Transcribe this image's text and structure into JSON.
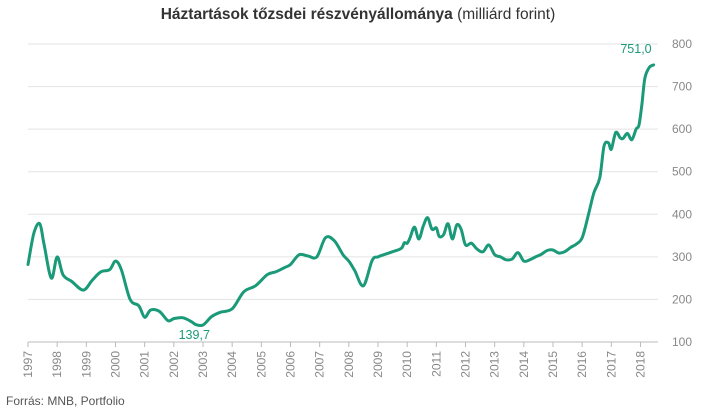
{
  "title_bold": "Háztartások tőzsdei részvényállománya",
  "title_rest": " (milliárd forint)",
  "source": "Forrás:  MNB, Portfolio",
  "line_color": "#1a9a78",
  "chart_data": {
    "type": "line",
    "title": "Háztartások tőzsdei részvényállománya (milliárd forint)",
    "ylim": [
      100,
      800
    ],
    "yticks": [
      100,
      200,
      300,
      400,
      500,
      600,
      700,
      800
    ],
    "xlim": [
      1997,
      2018.6
    ],
    "xticks": [
      "1997",
      "1998",
      "1999",
      "2000",
      "2001",
      "2002",
      "2003",
      "2004",
      "2005",
      "2006",
      "2007",
      "2008",
      "2009",
      "2010",
      "2011",
      "2012",
      "2013",
      "2014",
      "2015",
      "2016",
      "2017",
      "2018"
    ],
    "grid": true,
    "annotations": [
      {
        "label": "751,0",
        "x": 2018.45,
        "y": 751.0
      },
      {
        "label": "139,7",
        "x": 2002.7,
        "y": 139.7
      }
    ],
    "series": [
      {
        "x": [
          1997.0,
          1997.2,
          1997.4,
          1997.55,
          1997.8,
          1998.0,
          1998.2,
          1998.5,
          1998.9,
          1999.2,
          1999.5,
          1999.8,
          2000.0,
          2000.2,
          2000.5,
          2000.8,
          2001.0,
          2001.2,
          2001.5,
          2001.8,
          2002.0,
          2002.3,
          2002.6,
          2002.75,
          2003.0,
          2003.3,
          2003.6,
          2004.0,
          2004.4,
          2004.8,
          2005.2,
          2005.5,
          2005.8,
          2006.0,
          2006.3,
          2006.6,
          2006.9,
          2007.2,
          2007.5,
          2007.8,
          2008.0,
          2008.2,
          2008.5,
          2008.8,
          2009.0,
          2009.2,
          2009.5,
          2009.8,
          2009.9,
          2010.0,
          2010.1,
          2010.25,
          2010.4,
          2010.55,
          2010.7,
          2010.85,
          2011.0,
          2011.1,
          2011.25,
          2011.4,
          2011.55,
          2011.7,
          2011.85,
          2012.0,
          2012.2,
          2012.4,
          2012.6,
          2012.8,
          2013.0,
          2013.2,
          2013.4,
          2013.6,
          2013.8,
          2014.0,
          2014.2,
          2014.4,
          2014.6,
          2014.8,
          2015.0,
          2015.2,
          2015.4,
          2015.6,
          2015.8,
          2016.0,
          2016.2,
          2016.4,
          2016.6,
          2016.75,
          2016.9,
          2017.0,
          2017.15,
          2017.3,
          2017.4,
          2017.55,
          2017.7,
          2017.85,
          2017.95,
          2018.05,
          2018.15,
          2018.3,
          2018.45
        ],
        "values": [
          282,
          355,
          378,
          330,
          250,
          300,
          258,
          242,
          222,
          245,
          265,
          270,
          290,
          270,
          200,
          185,
          158,
          175,
          172,
          150,
          155,
          157,
          148,
          141,
          140,
          160,
          170,
          178,
          218,
          232,
          258,
          265,
          275,
          282,
          305,
          302,
          300,
          345,
          338,
          305,
          290,
          268,
          232,
          292,
          300,
          305,
          312,
          320,
          333,
          332,
          345,
          370,
          342,
          372,
          392,
          365,
          368,
          348,
          352,
          378,
          342,
          375,
          365,
          328,
          332,
          318,
          312,
          328,
          305,
          300,
          293,
          295,
          310,
          290,
          293,
          300,
          306,
          315,
          316,
          309,
          312,
          322,
          330,
          345,
          395,
          450,
          485,
          560,
          568,
          553,
          592,
          580,
          578,
          590,
          575,
          600,
          610,
          660,
          720,
          745,
          751
        ]
      }
    ]
  }
}
